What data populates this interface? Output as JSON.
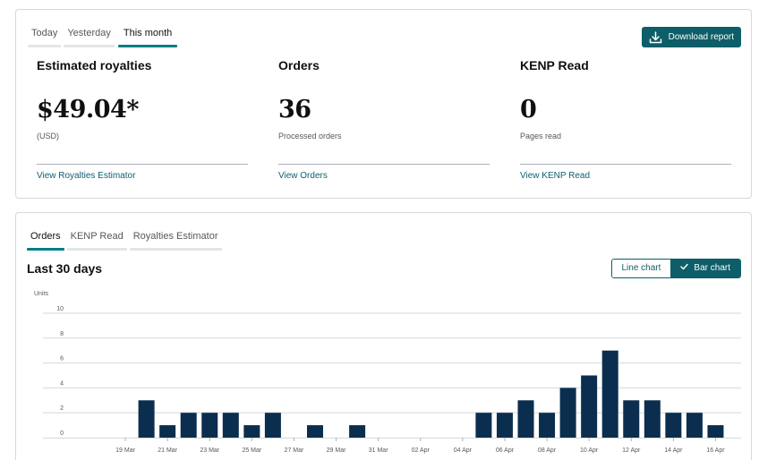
{
  "summary": {
    "tabs": [
      {
        "label": "Today",
        "active": false
      },
      {
        "label": "Yesterday",
        "active": false
      },
      {
        "label": "This month",
        "active": true
      }
    ],
    "download_label": "Download report",
    "download_icon": "download-icon",
    "metrics": [
      {
        "label": "Estimated royalties",
        "value": "$49.04*",
        "sub": "(USD)",
        "link": "View Royalties Estimator"
      },
      {
        "label": "Orders",
        "value": "36",
        "sub": "Processed orders",
        "link": "View Orders"
      },
      {
        "label": "KENP Read",
        "value": "0",
        "sub": "Pages read",
        "link": "View KENP Read"
      }
    ]
  },
  "report": {
    "tabs": [
      {
        "label": "Orders",
        "active": true
      },
      {
        "label": "KENP Read",
        "active": false
      },
      {
        "label": "Royalties Estimator",
        "active": false
      }
    ],
    "title": "Last 30 days",
    "toggle": {
      "line_label": "Line chart",
      "bar_label": "Bar chart",
      "selected": "bar",
      "check_icon": "check-icon"
    }
  },
  "colors": {
    "accent": "#0d5e68",
    "bar": "#0c2e4e"
  },
  "chart_data": {
    "type": "bar",
    "ylabel": "Units",
    "yticks": [
      0,
      2,
      4,
      6,
      8,
      10
    ],
    "ylim": [
      0,
      10
    ],
    "grid": true,
    "categories": [
      "18 Mar",
      "19 Mar",
      "20 Mar",
      "21 Mar",
      "22 Mar",
      "23 Mar",
      "24 Mar",
      "25 Mar",
      "26 Mar",
      "27 Mar",
      "28 Mar",
      "29 Mar",
      "30 Mar",
      "31 Mar",
      "01 Apr",
      "02 Apr",
      "03 Apr",
      "04 Apr",
      "05 Apr",
      "06 Apr",
      "07 Apr",
      "08 Apr",
      "09 Apr",
      "10 Apr",
      "11 Apr",
      "12 Apr",
      "13 Apr",
      "14 Apr",
      "15 Apr",
      "16 Apr",
      "17 Apr"
    ],
    "xtick_labels": [
      "19 Mar",
      "21 Mar",
      "23 Mar",
      "25 Mar",
      "27 Mar",
      "29 Mar",
      "31 Mar",
      "02 Apr",
      "04 Apr",
      "06 Apr",
      "08 Apr",
      "10 Apr",
      "12 Apr",
      "14 Apr",
      "16 Apr"
    ],
    "series": [
      {
        "values": [
          0,
          0,
          3,
          1,
          2,
          2,
          2,
          1,
          2,
          0,
          1,
          0,
          1,
          0,
          0,
          0,
          0,
          0,
          2,
          2,
          3,
          2,
          4,
          5,
          7,
          3,
          3,
          2,
          2,
          1,
          0
        ]
      }
    ]
  }
}
